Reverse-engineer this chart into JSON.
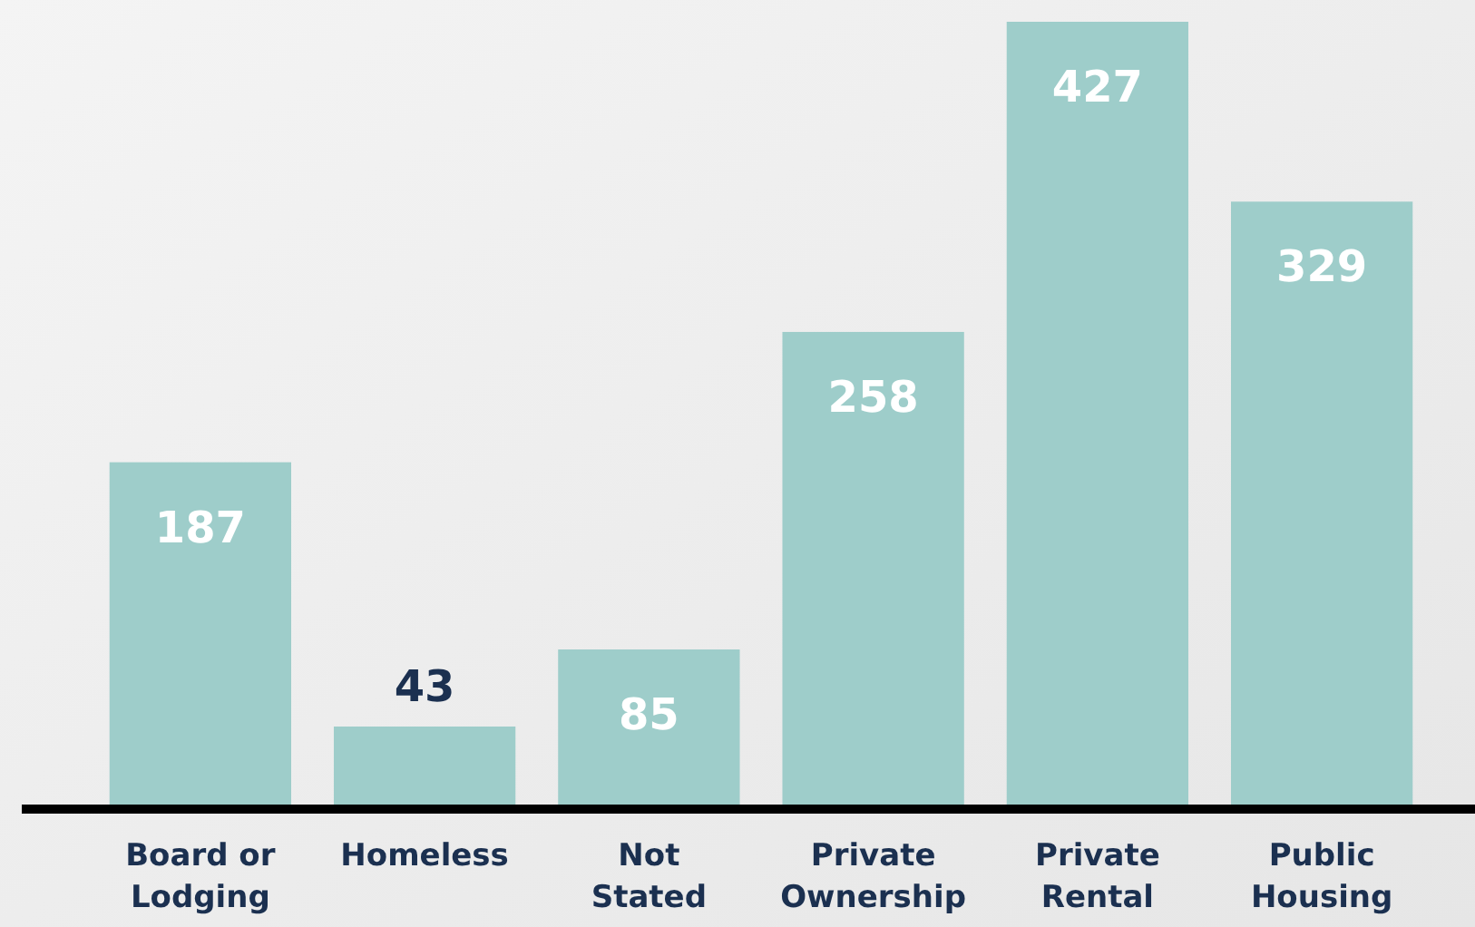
{
  "chart_data": {
    "type": "bar",
    "categories": [
      "Board or Lodging",
      "Homeless",
      "Not Stated",
      "Private Ownership",
      "Private Rental",
      "Public Housing"
    ],
    "values": [
      187,
      43,
      85,
      258,
      427,
      329
    ],
    "color": "#9ecdca",
    "data_labels": true
  }
}
